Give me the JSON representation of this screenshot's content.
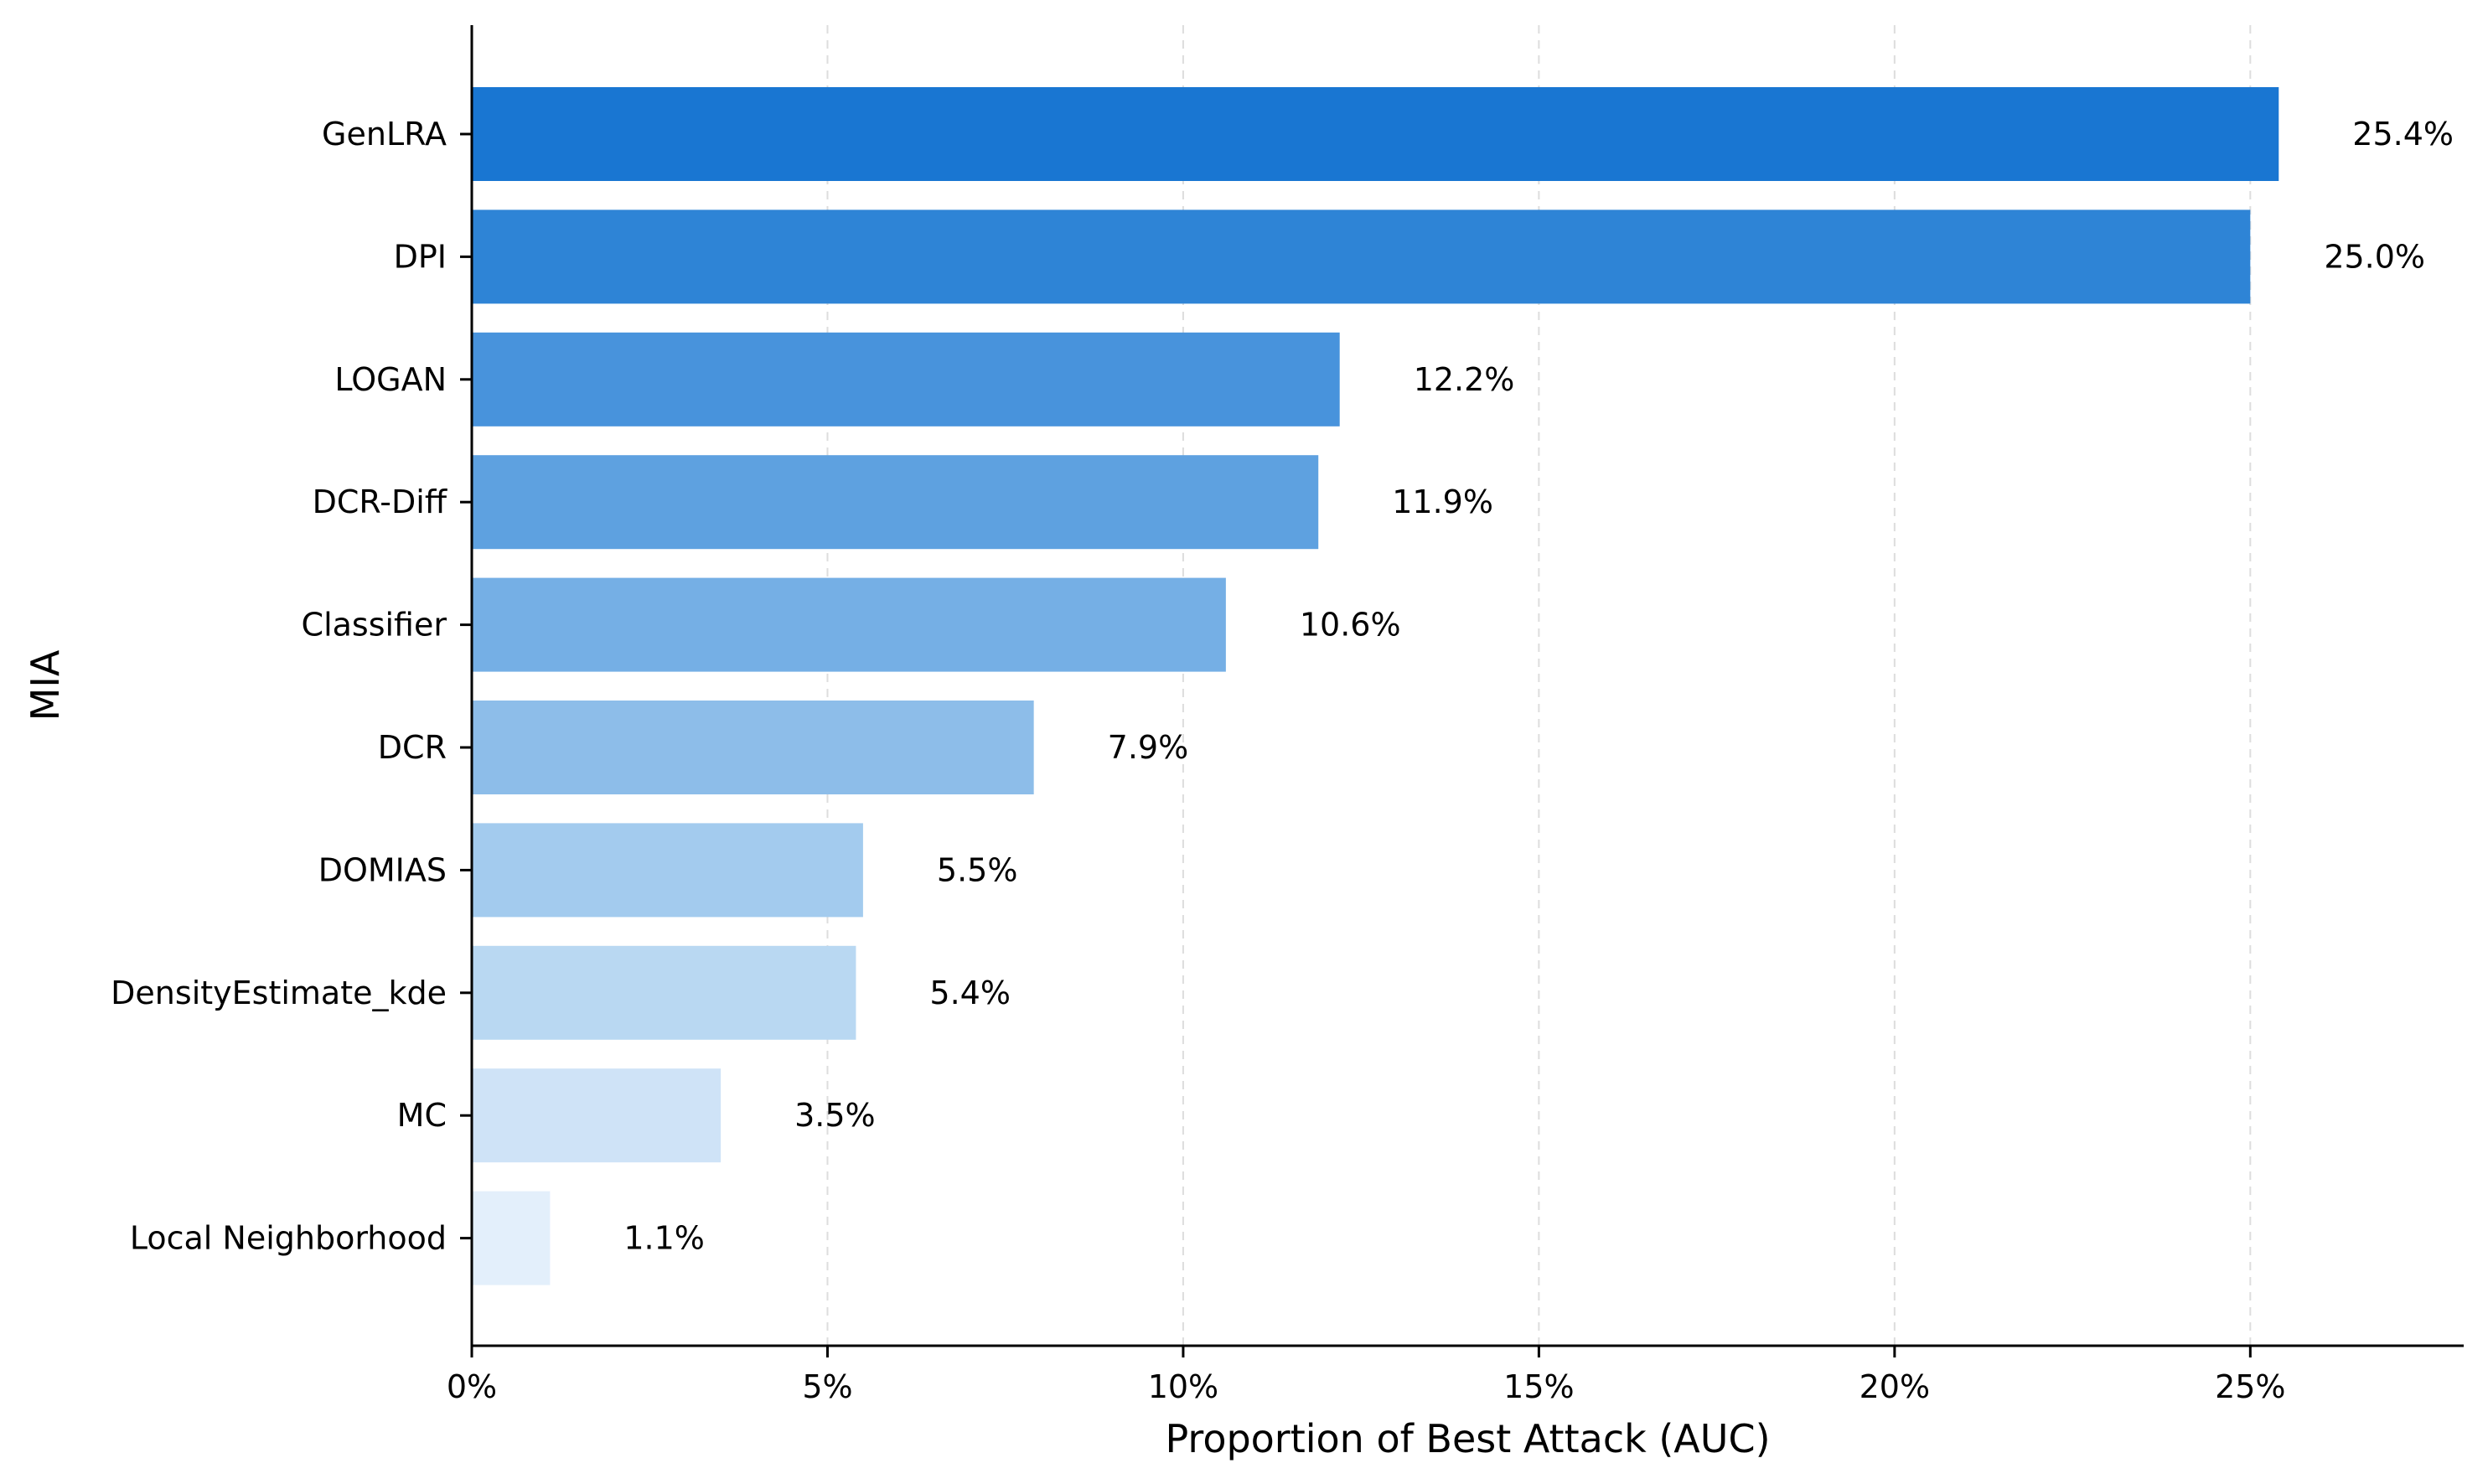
{
  "chart_data": {
    "type": "bar",
    "orientation": "horizontal",
    "categories": [
      "GenLRA",
      "DPI",
      "LOGAN",
      "DCR-Diff",
      "Classifier",
      "DCR",
      "DOMIAS",
      "DensityEstimate_kde",
      "MC",
      "Local Neighborhood"
    ],
    "values": [
      25.4,
      25.0,
      12.2,
      11.9,
      10.6,
      7.9,
      5.5,
      5.4,
      3.5,
      1.1
    ],
    "value_labels": [
      "25.4%",
      "25.0%",
      "12.2%",
      "11.9%",
      "10.6%",
      "7.9%",
      "5.5%",
      "5.4%",
      "3.5%",
      "1.1%"
    ],
    "bar_colors": [
      "#1976d2",
      "#2e84d6",
      "#4893dc",
      "#5ea1e0",
      "#75afe5",
      "#8dbde9",
      "#a3cbee",
      "#b9d8f2",
      "#cfe3f7",
      "#e3effb"
    ],
    "xlabel": "Proportion of Best Attack (AUC)",
    "ylabel": "MIA",
    "xlim": [
      0,
      28
    ],
    "xticks": [
      0,
      5,
      10,
      15,
      20,
      25
    ],
    "xtick_labels": [
      "0%",
      "5%",
      "10%",
      "15%",
      "20%",
      "25%"
    ],
    "grid": "vertical dashed",
    "legend": "none"
  }
}
